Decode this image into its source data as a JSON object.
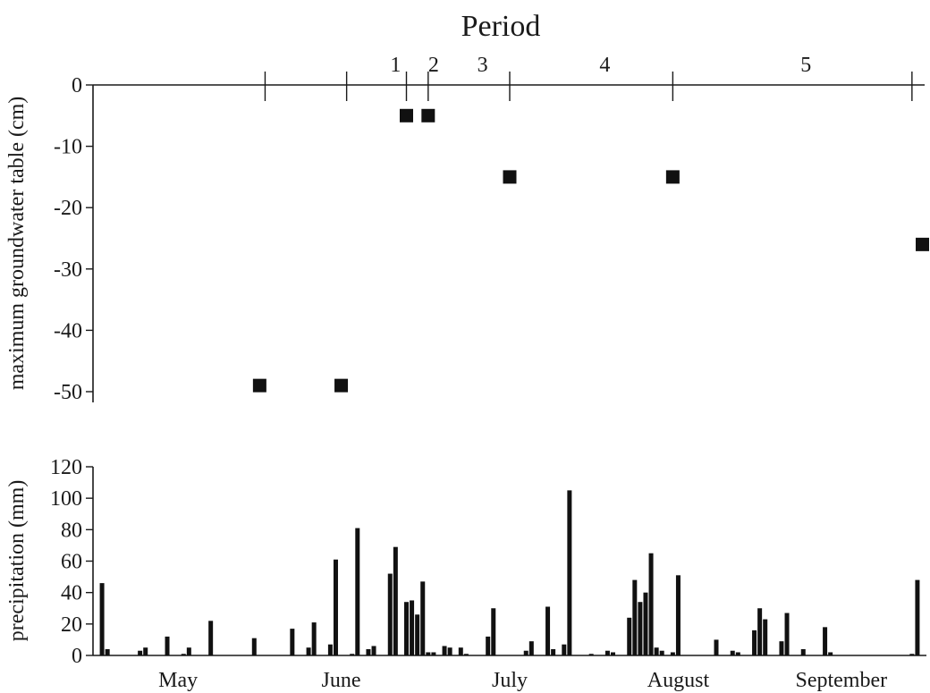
{
  "chart_data": [
    {
      "type": "scatter",
      "title": "Period",
      "ylabel": "maximum groundwater table (cm)",
      "ylim": [
        -50,
        0
      ],
      "yticks": [
        0,
        -10,
        -20,
        -30,
        -40,
        -50
      ],
      "xlim": [
        "May 1",
        "Sep 30"
      ],
      "periods": [
        {
          "label": "1",
          "start": "Jun 20",
          "end": "Jun 30"
        },
        {
          "label": "2",
          "start": "Jun 30",
          "end": "Jul 4"
        },
        {
          "label": "3",
          "start": "Jul 4",
          "end": "Jul 18"
        },
        {
          "label": "4",
          "start": "Jul 18",
          "end": "Aug 18"
        },
        {
          "label": "5",
          "start": "Aug 18",
          "end": "Sep 30"
        }
      ],
      "period_boundaries": [
        "Jun 1",
        "Jun 16",
        "Jun 27",
        "Jul 1",
        "Jul 16",
        "Aug 15",
        "Sep 28"
      ],
      "points": [
        {
          "x": "May 31",
          "y": -49
        },
        {
          "x": "Jun 15",
          "y": -49
        },
        {
          "x": "Jun 27",
          "y": -5
        },
        {
          "x": "Jul 1",
          "y": -5
        },
        {
          "x": "Jul 16",
          "y": -15
        },
        {
          "x": "Aug 15",
          "y": -15
        },
        {
          "x": "Sep 30",
          "y": -26
        }
      ]
    },
    {
      "type": "bar",
      "ylabel": "precipitation (mm)",
      "ylim": [
        0,
        120
      ],
      "yticks": [
        0,
        20,
        40,
        60,
        80,
        100,
        120
      ],
      "xlim": [
        "May 1",
        "Sep 30"
      ],
      "months": [
        "May",
        "June",
        "July",
        "August",
        "September"
      ],
      "bars": [
        {
          "x": "May 2",
          "y": 46
        },
        {
          "x": "May 3",
          "y": 4
        },
        {
          "x": "May 9",
          "y": 3
        },
        {
          "x": "May 10",
          "y": 5
        },
        {
          "x": "May 14",
          "y": 12
        },
        {
          "x": "May 17",
          "y": 1
        },
        {
          "x": "May 18",
          "y": 5
        },
        {
          "x": "May 22",
          "y": 22
        },
        {
          "x": "May 30",
          "y": 11
        },
        {
          "x": "Jun 6",
          "y": 17
        },
        {
          "x": "Jun 9",
          "y": 5
        },
        {
          "x": "Jun 10",
          "y": 21
        },
        {
          "x": "Jun 13",
          "y": 7
        },
        {
          "x": "Jun 14",
          "y": 61
        },
        {
          "x": "Jun 17",
          "y": 1
        },
        {
          "x": "Jun 18",
          "y": 81
        },
        {
          "x": "Jun 20",
          "y": 4
        },
        {
          "x": "Jun 21",
          "y": 6
        },
        {
          "x": "Jun 24",
          "y": 52
        },
        {
          "x": "Jun 25",
          "y": 69
        },
        {
          "x": "Jun 27",
          "y": 34
        },
        {
          "x": "Jun 28",
          "y": 35
        },
        {
          "x": "Jun 29",
          "y": 26
        },
        {
          "x": "Jun 30",
          "y": 47
        },
        {
          "x": "Jul 1",
          "y": 2
        },
        {
          "x": "Jul 2",
          "y": 2
        },
        {
          "x": "Jul 4",
          "y": 6
        },
        {
          "x": "Jul 5",
          "y": 5
        },
        {
          "x": "Jul 7",
          "y": 5
        },
        {
          "x": "Jul 8",
          "y": 1
        },
        {
          "x": "Jul 12",
          "y": 12
        },
        {
          "x": "Jul 13",
          "y": 30
        },
        {
          "x": "Jul 19",
          "y": 3
        },
        {
          "x": "Jul 20",
          "y": 9
        },
        {
          "x": "Jul 23",
          "y": 31
        },
        {
          "x": "Jul 24",
          "y": 4
        },
        {
          "x": "Jul 26",
          "y": 7
        },
        {
          "x": "Jul 27",
          "y": 105
        },
        {
          "x": "Jul 31",
          "y": 1
        },
        {
          "x": "Aug 3",
          "y": 3
        },
        {
          "x": "Aug 4",
          "y": 2
        },
        {
          "x": "Aug 7",
          "y": 24
        },
        {
          "x": "Aug 8",
          "y": 48
        },
        {
          "x": "Aug 9",
          "y": 34
        },
        {
          "x": "Aug 10",
          "y": 40
        },
        {
          "x": "Aug 11",
          "y": 65
        },
        {
          "x": "Aug 12",
          "y": 5
        },
        {
          "x": "Aug 13",
          "y": 3
        },
        {
          "x": "Aug 15",
          "y": 2
        },
        {
          "x": "Aug 16",
          "y": 51
        },
        {
          "x": "Aug 23",
          "y": 10
        },
        {
          "x": "Aug 26",
          "y": 3
        },
        {
          "x": "Aug 27",
          "y": 2
        },
        {
          "x": "Aug 30",
          "y": 16
        },
        {
          "x": "Aug 31",
          "y": 30
        },
        {
          "x": "Sep 1",
          "y": 23
        },
        {
          "x": "Sep 4",
          "y": 9
        },
        {
          "x": "Sep 5",
          "y": 27
        },
        {
          "x": "Sep 8",
          "y": 4
        },
        {
          "x": "Sep 12",
          "y": 18
        },
        {
          "x": "Sep 13",
          "y": 2
        },
        {
          "x": "Sep 28",
          "y": 1
        },
        {
          "x": "Sep 29",
          "y": 48
        }
      ]
    }
  ]
}
